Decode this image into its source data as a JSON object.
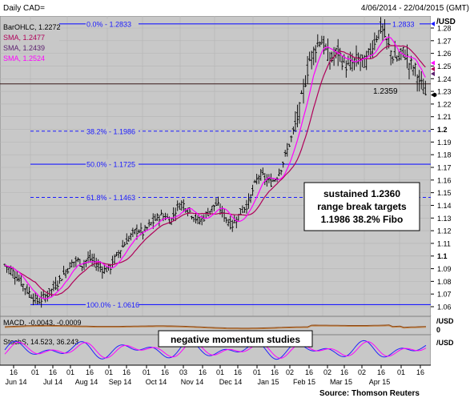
{
  "header": {
    "symbol": "Daily CAD=",
    "date_range": "4/06/2014 - 22/04/2015 (GMT)"
  },
  "legend": [
    {
      "text": "BarOHLC, 1.2272",
      "color": "#000000"
    },
    {
      "text": "SMA, 1.2477",
      "color": "#b0005a"
    },
    {
      "text": "SMA, 1.2439",
      "color": "#5a1e6e"
    },
    {
      "text": "SMA, 1.2524",
      "color": "#ff00ff"
    }
  ],
  "colors": {
    "fibo_line": "#1a1aff",
    "price_bars": "#000000",
    "sma_fast": "#ff00ff",
    "sma_slow": "#b0005a",
    "macd_line": "#8b4513",
    "macd_signal": "#c08040",
    "stoch_k": "#2222ff",
    "stoch_d": "#ff00ff",
    "panel_bg": "#c8c8c8",
    "grid": "#b4b4b4",
    "inner_bg": "#d4d4d4"
  },
  "annotations": {
    "box1": [
      "sustained 1.2360",
      "range break targets",
      "1.1986 38.2% Fibo"
    ],
    "box2": "negative momentum studies",
    "level_1_2359": "1.2359",
    "source": "Source: Thomson Reuters"
  },
  "indicators": {
    "macd": {
      "label": "MACD, -0.0043, -0.0009",
      "unit": "/USD",
      "zero": "0"
    },
    "stoch": {
      "label": "StochS, 14.523, 36.243",
      "unit": "/USD"
    }
  },
  "price_axis": {
    "unit": "/USD"
  },
  "chart_data": {
    "type": "bar",
    "subtype": "ohlc",
    "y_ticks": [
      "1.28",
      "1.27",
      "1.26",
      "1.25",
      "1.24",
      "1.23",
      "1.22",
      "1.21",
      "1.2",
      "1.19",
      "1.18",
      "1.17",
      "1.16",
      "1.15",
      "1.14",
      "1.13",
      "1.12",
      "1.11",
      "1.1",
      "1.09",
      "1.08",
      "1.07",
      "1.06"
    ],
    "ylim": [
      1.055,
      1.29
    ],
    "x_day_ticks": [
      "16",
      "01",
      "16",
      "01",
      "16",
      "01",
      "16",
      "01",
      "16",
      "03",
      "16",
      "01",
      "16",
      "01",
      "16",
      "02",
      "16",
      "02",
      "16",
      "02",
      "16",
      "01",
      "16"
    ],
    "x_month_ticks": [
      "Jun 14",
      "Jul 14",
      "Aug 14",
      "Sep 14",
      "Oct 14",
      "Nov 14",
      "Dec 14",
      "Jan 15",
      "Feb 15",
      "Mar 15",
      "Apr 15"
    ],
    "fibonacci": [
      {
        "label": "0.0% - 1.2833",
        "value": 1.2833
      },
      {
        "label": "38.2% - 1.1986",
        "value": 1.1986
      },
      {
        "label": "50.0% - 1.1725",
        "value": 1.1725
      },
      {
        "label": "61.8% - 1.1463",
        "value": 1.1463
      },
      {
        "label": "100.0% - 1.0616",
        "value": 1.0616
      }
    ],
    "horizontal_level": 1.2359,
    "right_markers": [
      "1.2833",
      "1.2524",
      "1.2477",
      "1.2439",
      "1.2272"
    ],
    "close_path": [
      [
        0,
        1.093
      ],
      [
        8,
        1.088
      ],
      [
        16,
        1.081
      ],
      [
        24,
        1.073
      ],
      [
        30,
        1.068
      ],
      [
        36,
        1.064
      ],
      [
        42,
        1.067
      ],
      [
        48,
        1.071
      ],
      [
        54,
        1.076
      ],
      [
        60,
        1.082
      ],
      [
        66,
        1.088
      ],
      [
        72,
        1.094
      ],
      [
        78,
        1.097
      ],
      [
        84,
        1.093
      ],
      [
        90,
        1.098
      ],
      [
        96,
        1.096
      ],
      [
        102,
        1.092
      ],
      [
        108,
        1.089
      ],
      [
        114,
        1.091
      ],
      [
        120,
        1.099
      ],
      [
        126,
        1.106
      ],
      [
        132,
        1.112
      ],
      [
        138,
        1.117
      ],
      [
        144,
        1.121
      ],
      [
        150,
        1.118
      ],
      [
        156,
        1.124
      ],
      [
        162,
        1.128
      ],
      [
        168,
        1.132
      ],
      [
        174,
        1.131
      ],
      [
        180,
        1.128
      ],
      [
        186,
        1.138
      ],
      [
        192,
        1.142
      ],
      [
        198,
        1.137
      ],
      [
        204,
        1.132
      ],
      [
        210,
        1.127
      ],
      [
        216,
        1.131
      ],
      [
        222,
        1.136
      ],
      [
        228,
        1.141
      ],
      [
        234,
        1.137
      ],
      [
        240,
        1.129
      ],
      [
        246,
        1.124
      ],
      [
        252,
        1.131
      ],
      [
        258,
        1.137
      ],
      [
        264,
        1.142
      ],
      [
        270,
        1.155
      ],
      [
        276,
        1.165
      ],
      [
        282,
        1.161
      ],
      [
        288,
        1.158
      ],
      [
        294,
        1.162
      ],
      [
        300,
        1.171
      ],
      [
        306,
        1.184
      ],
      [
        312,
        1.197
      ],
      [
        318,
        1.212
      ],
      [
        324,
        1.233
      ],
      [
        330,
        1.255
      ],
      [
        336,
        1.264
      ],
      [
        342,
        1.272
      ],
      [
        348,
        1.261
      ],
      [
        354,
        1.255
      ],
      [
        360,
        1.262
      ],
      [
        366,
        1.254
      ],
      [
        372,
        1.249
      ],
      [
        378,
        1.253
      ],
      [
        384,
        1.256
      ],
      [
        390,
        1.252
      ],
      [
        396,
        1.262
      ],
      [
        402,
        1.273
      ],
      [
        408,
        1.281
      ],
      [
        414,
        1.268
      ],
      [
        420,
        1.258
      ],
      [
        426,
        1.255
      ],
      [
        432,
        1.262
      ],
      [
        438,
        1.252
      ],
      [
        444,
        1.248
      ],
      [
        450,
        1.236
      ],
      [
        456,
        1.227
      ]
    ]
  }
}
